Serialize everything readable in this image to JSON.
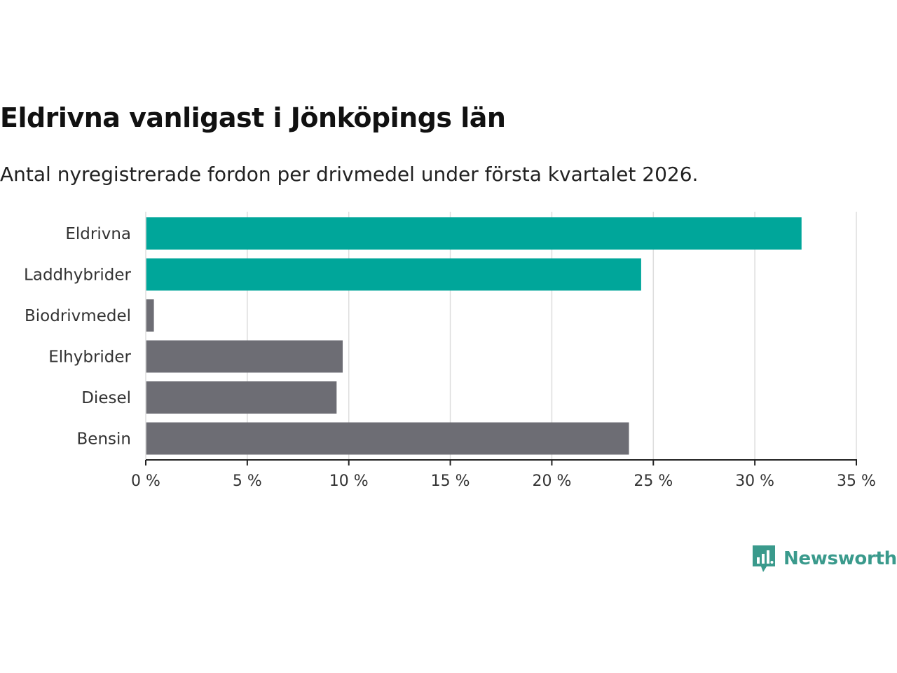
{
  "title": "Eldrivna vanligast i Jönköpings län",
  "subtitle": "Antal nyregistrerade fordon per drivmedel under första kvartalet 2026.",
  "chart_data": {
    "type": "bar",
    "orientation": "horizontal",
    "categories": [
      "Eldrivna",
      "Laddhybrider",
      "Biodrivmedel",
      "Elhybrider",
      "Diesel",
      "Bensin"
    ],
    "values": [
      32.3,
      24.4,
      0.4,
      9.7,
      9.4,
      23.8
    ],
    "highlighted": [
      true,
      true,
      false,
      false,
      false,
      false
    ],
    "xlim": [
      0,
      35
    ],
    "xticks": [
      0,
      5,
      10,
      15,
      20,
      25,
      30,
      35
    ],
    "tick_suffix": " %",
    "xlabel": "",
    "ylabel": "",
    "grid": "vertical",
    "colors": {
      "highlight": "#00a69a",
      "default": "#6d6d74",
      "grid": "#dddddd",
      "axis": "#222222"
    }
  },
  "logo": {
    "text": "Newsworthy",
    "icon": "newsworthy-bar-chart-icon",
    "color": "#3a9a8c"
  }
}
